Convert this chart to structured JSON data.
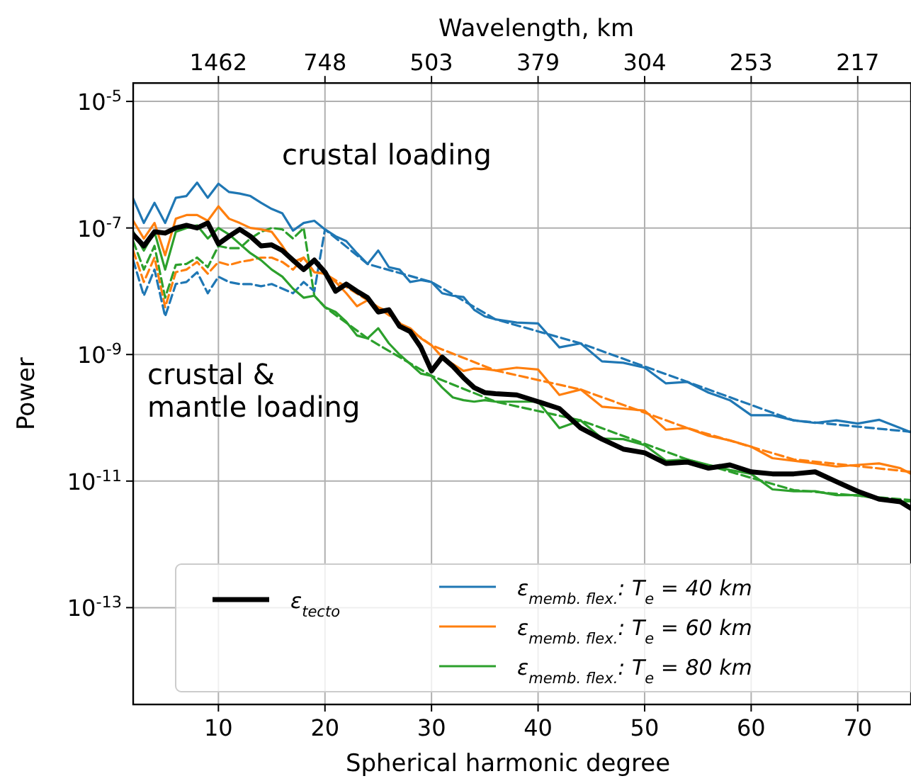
{
  "chart_data": {
    "type": "line",
    "xlabel": "Spherical harmonic degree",
    "ylabel": "Power",
    "x2label": "Wavelength, km",
    "x": [
      2,
      3,
      4,
      5,
      6,
      7,
      8,
      9,
      10,
      11,
      12,
      13,
      14,
      15,
      16,
      17,
      18,
      19,
      20,
      21,
      22,
      23,
      24,
      25,
      26,
      27,
      28,
      29,
      30,
      31,
      32,
      33,
      34,
      35,
      36,
      38,
      40,
      42,
      44,
      46,
      48,
      50,
      52,
      54,
      56,
      58,
      60,
      62,
      64,
      66,
      68,
      70,
      72,
      74,
      75
    ],
    "xlim": [
      2,
      75
    ],
    "xticks": [
      10,
      20,
      30,
      40,
      50,
      60,
      70
    ],
    "ylim": [
      2.95e-15,
      1.95e-05
    ],
    "log": "y",
    "yticks": [
      {
        "value": 1e-13,
        "label": "10$^{-13}$"
      },
      {
        "value": 1e-11,
        "label": "10$^{-11}$"
      },
      {
        "value": 1e-09,
        "label": "10$^{-9}$"
      },
      {
        "value": 1e-07,
        "label": "10$^{-7}$"
      },
      {
        "value": 1e-05,
        "label": "10$^{-5}$"
      }
    ],
    "grid": true,
    "legend": "bottom",
    "annotations": [
      "crustal loading",
      "crustal & mantle loading",
      {
        "text": "1462",
        "x": 10
      },
      {
        "text": "748",
        "x": 20
      },
      {
        "text": "503",
        "x": 30
      },
      {
        "text": "379",
        "x": 40
      },
      {
        "text": "304",
        "x": 50
      },
      {
        "text": "253",
        "x": 60
      },
      {
        "text": "217",
        "x": 70
      }
    ],
    "series": [
      {
        "name": "ε$_{tecto}$",
        "color": "#000000",
        "values": [
          7.9e-08,
          5.2e-08,
          8.7e-08,
          8.3e-08,
          1e-07,
          1.1e-07,
          1e-07,
          1.2e-07,
          5.6e-08,
          7.4e-08,
          9.5e-08,
          7.4e-08,
          5.2e-08,
          5.4e-08,
          4.4e-08,
          3.1e-08,
          2.2e-08,
          3.1e-08,
          2e-08,
          1e-08,
          1.3e-08,
          1e-08,
          7.9e-09,
          4.7e-09,
          5.1e-09,
          2.8e-09,
          2.3e-09,
          1.3e-09,
          5.5e-10,
          9.1e-10,
          6.5e-10,
          4.3e-10,
          3e-10,
          2.5e-10,
          2.4e-10,
          2.3e-10,
          1.8e-10,
          1.4e-10,
          6.9e-11,
          4.6e-11,
          3.2e-11,
          2.8e-11,
          1.9e-11,
          2e-11,
          1.6e-11,
          1.8e-11,
          1.4e-11,
          1.3e-11,
          1.3e-11,
          1.4e-11,
          9.8e-12,
          6.9e-12,
          5.2e-12,
          4.7e-12,
          3.7e-12
        ]
      },
      {
        "name": "ε$_{memb. flex.}$: T$_{e}$ = 40 km",
        "color": "#1f77b4",
        "values": [
          2.9e-07,
          1.2e-07,
          2.5e-07,
          1.2e-07,
          3e-07,
          3.2e-07,
          5.2e-07,
          3e-07,
          5e-07,
          3.7e-07,
          3.5e-07,
          3.2e-07,
          2.5e-07,
          2e-07,
          1.7e-07,
          9.1e-08,
          1.2e-07,
          1.3e-07,
          9.5e-08,
          7.4e-08,
          6.2e-08,
          4e-08,
          2.7e-08,
          4.4e-08,
          2.4e-08,
          2.2e-08,
          1.4e-08,
          1.5e-08,
          1.4e-08,
          9.3e-09,
          8.5e-09,
          8.1e-09,
          5.1e-09,
          4e-09,
          3.6e-09,
          3.2e-09,
          3.1e-09,
          1.3e-09,
          1.5e-09,
          7.8e-10,
          7.4e-10,
          6.2e-10,
          3.5e-10,
          3.7e-10,
          2.5e-10,
          1.9e-10,
          1.1e-10,
          1.1e-10,
          9.1e-11,
          8.3e-11,
          9.1e-11,
          8.1e-11,
          9.3e-11,
          6.9e-11,
          5.9e-11
        ]
      },
      {
        "name": "ε$_{memb. flex.}$: T$_{e}$ = 60 km",
        "color": "#ff7f0e",
        "values": [
          1.3e-07,
          6.8e-08,
          1.2e-07,
          3.7e-08,
          1.4e-07,
          1.6e-07,
          1.6e-07,
          1.3e-07,
          2.2e-07,
          1.4e-07,
          1.2e-07,
          1e-07,
          9.5e-08,
          8.7e-08,
          5.2e-08,
          2.9e-08,
          3.4e-08,
          2e-08,
          1.9e-08,
          1.4e-08,
          9.3e-09,
          5.8e-09,
          7.2e-09,
          5.6e-09,
          4.7e-09,
          3.1e-09,
          2.6e-09,
          1.8e-09,
          1.4e-09,
          9.1e-10,
          7.1e-10,
          5.5e-10,
          6e-10,
          5.9e-10,
          5.6e-10,
          6.2e-10,
          5.8e-10,
          2.3e-10,
          2.8e-10,
          1.5e-10,
          1.4e-10,
          1.3e-10,
          6.5e-11,
          6.9e-11,
          5.2e-11,
          4.4e-11,
          3.5e-11,
          2.3e-11,
          2.1e-11,
          1.9e-11,
          1.7e-11,
          1.8e-11,
          1.9e-11,
          1.6e-11,
          1.3e-11
        ]
      },
      {
        "name": "ε$_{memb. flex.}$: T$_{e}$ = 80 km",
        "color": "#2ca02c",
        "values": [
          8.7e-08,
          4.4e-08,
          8.7e-08,
          2.2e-08,
          8.7e-08,
          1e-07,
          1.1e-07,
          6.8e-08,
          1e-07,
          7.9e-08,
          5.6e-08,
          4e-08,
          3.1e-08,
          2.2e-08,
          1.7e-08,
          1.1e-08,
          7.9e-09,
          8.5e-09,
          5.6e-09,
          4.7e-09,
          3.3e-09,
          2e-09,
          1.8e-09,
          2.6e-09,
          1.5e-09,
          1e-09,
          7.1e-10,
          5e-10,
          4.6e-10,
          3e-10,
          2.1e-10,
          1.9e-10,
          1.8e-10,
          1.9e-10,
          1.8e-10,
          1.8e-10,
          1.8e-10,
          6.9e-11,
          9.1e-11,
          4.7e-11,
          4.6e-11,
          3.7e-11,
          2.1e-11,
          2.2e-11,
          1.8e-11,
          1.5e-11,
          1.3e-11,
          7.4e-12,
          6.9e-12,
          6.9e-12,
          6e-12,
          6e-12,
          5.2e-12,
          4.7e-12,
          4.8e-12
        ]
      },
      {
        "color": "#1f77b4",
        "line_style": "dashed",
        "x": [
          2,
          3,
          4,
          5,
          6,
          7,
          8,
          9,
          10,
          11,
          12,
          13,
          14,
          15,
          16,
          17,
          18,
          19,
          20,
          24,
          30,
          36,
          44,
          54,
          64,
          75
        ],
        "values": [
          3.1e-08,
          8.5e-09,
          2.2e-08,
          4e-09,
          1.3e-08,
          1.4e-08,
          2e-08,
          9.3e-09,
          1.7e-08,
          1.4e-08,
          1.3e-08,
          1.3e-08,
          1.2e-08,
          1.3e-08,
          1.1e-08,
          9.3e-09,
          1.4e-08,
          1e-08,
          9.5e-08,
          2.7e-08,
          1.4e-08,
          3.6e-09,
          1.5e-09,
          3.7e-10,
          9.1e-11,
          6e-11
        ]
      },
      {
        "color": "#ff7f0e",
        "line_style": "dashed",
        "x": [
          2,
          3,
          4,
          5,
          6,
          7,
          8,
          9,
          10,
          11,
          12,
          13,
          14,
          15,
          16,
          17,
          18,
          19,
          20,
          24,
          30,
          36,
          44,
          54,
          64,
          75
        ],
        "values": [
          4.4e-08,
          1.4e-08,
          3.4e-08,
          5.6e-09,
          2e-08,
          2.2e-08,
          2.9e-08,
          1.9e-08,
          2.9e-08,
          2.6e-08,
          2.9e-08,
          3.1e-08,
          3.4e-08,
          3.4e-08,
          2.9e-08,
          2.2e-08,
          3.4e-08,
          2e-08,
          1.9e-08,
          7.2e-09,
          1.4e-09,
          5.6e-10,
          2.8e-10,
          6.9e-11,
          2.2e-11,
          1.4e-11
        ]
      },
      {
        "color": "#2ca02c",
        "line_style": "dashed",
        "x": [
          2,
          3,
          4,
          5,
          6,
          7,
          8,
          9,
          10,
          11,
          12,
          13,
          14,
          15,
          16,
          17,
          18,
          19,
          20,
          24,
          30,
          36,
          44,
          54,
          64,
          75
        ],
        "values": [
          6.2e-08,
          2.2e-08,
          5.2e-08,
          7.9e-09,
          2.6e-08,
          2.7e-08,
          3.4e-08,
          2.4e-08,
          5.2e-08,
          4.8e-08,
          4.8e-08,
          6.8e-08,
          8.7e-08,
          1e-07,
          9.5e-08,
          6.8e-08,
          1e-07,
          8.5e-09,
          5.6e-09,
          1.8e-09,
          4.6e-10,
          1.8e-10,
          9.1e-11,
          2.2e-11,
          7.2e-12,
          5e-12
        ]
      }
    ]
  }
}
